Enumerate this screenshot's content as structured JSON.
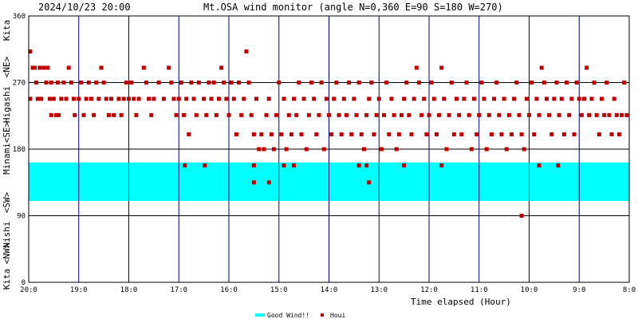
{
  "header": {
    "timestamp": "2024/10/23 20:00",
    "title": "Mt.OSA wind monitor (angle N=0,360 E=90 S=180 W=270)"
  },
  "axes": {
    "x_title": "Time elapsed (Hour)",
    "y_side_labels": [
      "Kita",
      "<NW>",
      "Nishi",
      "<SW>",
      "Minami",
      "<SE>",
      "Higashi",
      "<NE>",
      "Kita"
    ]
  },
  "legend": {
    "good_wind_label": "Good Wind!!",
    "houi_label": "Houi"
  },
  "colors": {
    "good_wind": "#00ffff",
    "houi": "#c00000",
    "frame": "#000000",
    "vgrid": "#000080"
  },
  "chart_data": {
    "type": "scatter",
    "title": "Mt.OSA wind monitor (angle N=0,360 E=90 S=180 W=270)",
    "xlabel": "Time elapsed (Hour)",
    "ylabel": "",
    "x_ticks": [
      "20:0",
      "19:0",
      "18:0",
      "17:0",
      "16:0",
      "15:0",
      "14:0",
      "13:0",
      "12:0",
      "11:0",
      "10:0",
      "9:0",
      "8:0"
    ],
    "x_range_hours": [
      0,
      12
    ],
    "y_ticks": [
      0,
      90,
      180,
      270,
      360
    ],
    "ylim": [
      0,
      360
    ],
    "good_wind_band": [
      110,
      162
    ],
    "series": [
      {
        "name": "Houi",
        "points": [
          [
            0.03,
            312
          ],
          [
            0.03,
            248
          ],
          [
            0.08,
            290
          ],
          [
            0.12,
            290
          ],
          [
            0.15,
            270
          ],
          [
            0.18,
            248
          ],
          [
            0.22,
            290
          ],
          [
            0.25,
            248
          ],
          [
            0.3,
            290
          ],
          [
            0.35,
            270
          ],
          [
            0.38,
            290
          ],
          [
            0.42,
            248
          ],
          [
            0.45,
            270
          ],
          [
            0.45,
            226
          ],
          [
            0.5,
            248
          ],
          [
            0.55,
            226
          ],
          [
            0.58,
            270
          ],
          [
            0.6,
            226
          ],
          [
            0.65,
            248
          ],
          [
            0.7,
            270
          ],
          [
            0.75,
            248
          ],
          [
            0.8,
            290
          ],
          [
            0.85,
            270
          ],
          [
            0.9,
            248
          ],
          [
            0.92,
            226
          ],
          [
            1.0,
            248
          ],
          [
            1.05,
            270
          ],
          [
            1.1,
            226
          ],
          [
            1.15,
            248
          ],
          [
            1.2,
            270
          ],
          [
            1.25,
            248
          ],
          [
            1.3,
            226
          ],
          [
            1.35,
            270
          ],
          [
            1.4,
            248
          ],
          [
            1.45,
            290
          ],
          [
            1.5,
            270
          ],
          [
            1.55,
            248
          ],
          [
            1.6,
            226
          ],
          [
            1.65,
            248
          ],
          [
            1.7,
            226
          ],
          [
            1.8,
            248
          ],
          [
            1.85,
            226
          ],
          [
            1.9,
            248
          ],
          [
            1.95,
            270
          ],
          [
            2.0,
            248
          ],
          [
            2.05,
            270
          ],
          [
            2.1,
            248
          ],
          [
            2.15,
            226
          ],
          [
            2.2,
            248
          ],
          [
            2.3,
            290
          ],
          [
            2.35,
            270
          ],
          [
            2.4,
            248
          ],
          [
            2.45,
            226
          ],
          [
            2.5,
            248
          ],
          [
            2.6,
            270
          ],
          [
            2.7,
            248
          ],
          [
            2.8,
            290
          ],
          [
            2.85,
            270
          ],
          [
            2.9,
            248
          ],
          [
            2.95,
            226
          ],
          [
            3.0,
            248
          ],
          [
            3.05,
            270
          ],
          [
            3.1,
            226
          ],
          [
            3.15,
            248
          ],
          [
            3.2,
            200
          ],
          [
            3.25,
            270
          ],
          [
            3.3,
            248
          ],
          [
            3.35,
            226
          ],
          [
            3.4,
            270
          ],
          [
            3.5,
            248
          ],
          [
            3.55,
            226
          ],
          [
            3.6,
            270
          ],
          [
            3.65,
            248
          ],
          [
            3.7,
            270
          ],
          [
            3.75,
            226
          ],
          [
            3.8,
            248
          ],
          [
            3.85,
            290
          ],
          [
            3.9,
            270
          ],
          [
            3.95,
            248
          ],
          [
            4.0,
            226
          ],
          [
            4.05,
            270
          ],
          [
            4.1,
            248
          ],
          [
            4.15,
            200
          ],
          [
            4.2,
            270
          ],
          [
            4.25,
            226
          ],
          [
            4.3,
            248
          ],
          [
            4.35,
            312
          ],
          [
            4.4,
            270
          ],
          [
            4.45,
            226
          ],
          [
            4.5,
            200
          ],
          [
            4.55,
            248
          ],
          [
            4.6,
            180
          ],
          [
            4.65,
            200
          ],
          [
            4.7,
            180
          ],
          [
            4.75,
            226
          ],
          [
            4.8,
            248
          ],
          [
            4.85,
            200
          ],
          [
            4.9,
            180
          ],
          [
            4.95,
            226
          ],
          [
            5.0,
            270
          ],
          [
            5.05,
            200
          ],
          [
            5.1,
            248
          ],
          [
            5.15,
            180
          ],
          [
            5.2,
            226
          ],
          [
            5.25,
            200
          ],
          [
            5.3,
            248
          ],
          [
            5.35,
            226
          ],
          [
            5.4,
            270
          ],
          [
            5.45,
            200
          ],
          [
            5.5,
            248
          ],
          [
            5.55,
            180
          ],
          [
            5.6,
            226
          ],
          [
            5.65,
            270
          ],
          [
            5.7,
            248
          ],
          [
            5.75,
            200
          ],
          [
            5.8,
            226
          ],
          [
            5.85,
            270
          ],
          [
            5.9,
            180
          ],
          [
            5.95,
            248
          ],
          [
            6.0,
            226
          ],
          [
            6.05,
            200
          ],
          [
            6.1,
            248
          ],
          [
            6.15,
            270
          ],
          [
            6.2,
            226
          ],
          [
            6.25,
            200
          ],
          [
            6.3,
            248
          ],
          [
            6.35,
            226
          ],
          [
            6.4,
            270
          ],
          [
            6.45,
            200
          ],
          [
            6.5,
            248
          ],
          [
            6.55,
            226
          ],
          [
            6.6,
            270
          ],
          [
            6.65,
            200
          ],
          [
            6.7,
            180
          ],
          [
            6.75,
            226
          ],
          [
            6.8,
            248
          ],
          [
            6.85,
            270
          ],
          [
            6.9,
            200
          ],
          [
            6.95,
            226
          ],
          [
            7.0,
            248
          ],
          [
            7.05,
            180
          ],
          [
            7.1,
            226
          ],
          [
            7.15,
            270
          ],
          [
            7.2,
            200
          ],
          [
            7.25,
            248
          ],
          [
            7.3,
            226
          ],
          [
            7.35,
            180
          ],
          [
            7.4,
            200
          ],
          [
            7.45,
            226
          ],
          [
            7.5,
            248
          ],
          [
            7.55,
            270
          ],
          [
            7.6,
            226
          ],
          [
            7.65,
            200
          ],
          [
            7.7,
            248
          ],
          [
            7.75,
            290
          ],
          [
            7.8,
            270
          ],
          [
            7.85,
            226
          ],
          [
            7.9,
            248
          ],
          [
            7.95,
            200
          ],
          [
            8.0,
            226
          ],
          [
            8.05,
            270
          ],
          [
            8.1,
            248
          ],
          [
            8.15,
            200
          ],
          [
            8.2,
            226
          ],
          [
            8.25,
            290
          ],
          [
            8.3,
            248
          ],
          [
            8.35,
            180
          ],
          [
            8.4,
            226
          ],
          [
            8.45,
            270
          ],
          [
            8.5,
            200
          ],
          [
            8.55,
            248
          ],
          [
            8.6,
            226
          ],
          [
            8.65,
            200
          ],
          [
            8.7,
            248
          ],
          [
            8.75,
            270
          ],
          [
            8.8,
            226
          ],
          [
            8.85,
            180
          ],
          [
            8.9,
            248
          ],
          [
            8.95,
            200
          ],
          [
            9.0,
            226
          ],
          [
            9.05,
            270
          ],
          [
            9.1,
            248
          ],
          [
            9.15,
            180
          ],
          [
            9.2,
            226
          ],
          [
            9.25,
            200
          ],
          [
            9.3,
            248
          ],
          [
            9.35,
            270
          ],
          [
            9.4,
            226
          ],
          [
            9.45,
            200
          ],
          [
            9.5,
            248
          ],
          [
            9.55,
            180
          ],
          [
            9.6,
            226
          ],
          [
            9.65,
            200
          ],
          [
            9.7,
            248
          ],
          [
            9.75,
            270
          ],
          [
            9.8,
            226
          ],
          [
            9.85,
            200
          ],
          [
            9.9,
            180
          ],
          [
            9.95,
            248
          ],
          [
            10.0,
            226
          ],
          [
            10.05,
            270
          ],
          [
            10.1,
            200
          ],
          [
            10.15,
            248
          ],
          [
            10.2,
            226
          ],
          [
            10.25,
            290
          ],
          [
            10.3,
            270
          ],
          [
            10.35,
            248
          ],
          [
            10.4,
            226
          ],
          [
            10.45,
            200
          ],
          [
            10.5,
            248
          ],
          [
            10.55,
            270
          ],
          [
            10.6,
            226
          ],
          [
            10.65,
            248
          ],
          [
            10.7,
            200
          ],
          [
            10.75,
            270
          ],
          [
            10.8,
            226
          ],
          [
            10.85,
            248
          ],
          [
            10.9,
            200
          ],
          [
            10.95,
            270
          ],
          [
            11.0,
            248
          ],
          [
            11.05,
            226
          ],
          [
            11.1,
            248
          ],
          [
            11.15,
            290
          ],
          [
            11.2,
            226
          ],
          [
            11.25,
            248
          ],
          [
            11.3,
            270
          ],
          [
            11.35,
            226
          ],
          [
            11.4,
            200
          ],
          [
            11.45,
            248
          ],
          [
            11.5,
            226
          ],
          [
            11.55,
            270
          ],
          [
            11.6,
            226
          ],
          [
            11.65,
            200
          ],
          [
            11.7,
            248
          ],
          [
            11.75,
            226
          ],
          [
            11.8,
            200
          ],
          [
            11.85,
            226
          ],
          [
            11.9,
            270
          ],
          [
            11.95,
            226
          ],
          [
            3.12,
            158
          ],
          [
            3.52,
            158
          ],
          [
            4.5,
            158
          ],
          [
            5.1,
            158
          ],
          [
            5.3,
            158
          ],
          [
            6.6,
            158
          ],
          [
            6.75,
            158
          ],
          [
            7.5,
            158
          ],
          [
            8.25,
            158
          ],
          [
            10.2,
            158
          ],
          [
            10.58,
            158
          ],
          [
            4.5,
            135
          ],
          [
            4.8,
            135
          ],
          [
            6.8,
            135
          ],
          [
            9.85,
            90
          ]
        ]
      }
    ]
  }
}
